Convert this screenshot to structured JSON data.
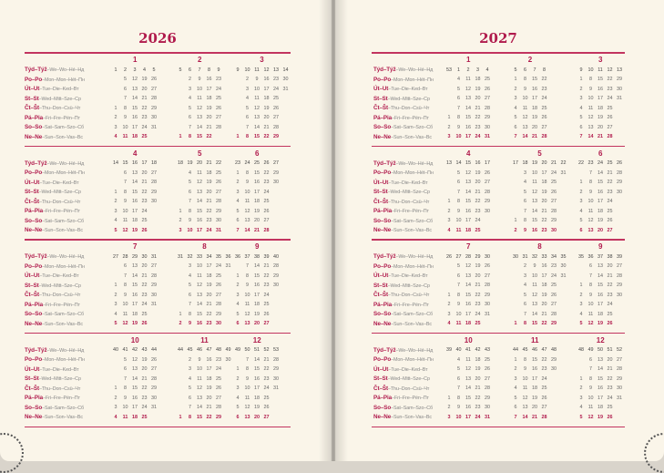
{
  "row_labels": [
    {
      "main": "Týd–Týž",
      "rest": "–We–Wo–Hé–Нд"
    },
    {
      "main": "Po–Po",
      "rest": "–Mon–Mon–Hét–Пн"
    },
    {
      "main": "Út–Ut",
      "rest": "–Tue–Die–Ked–Вт"
    },
    {
      "main": "St–St",
      "rest": "–Wed–Mitt–Sze–Ср"
    },
    {
      "main": "Čt–Št",
      "rest": "–Thu–Don–Csü–Чт"
    },
    {
      "main": "Pá–Pia",
      "rest": "–Fri–Fre–Pén–Пт"
    },
    {
      "main": "So–So",
      "rest": "–Sat–Sam–Szo–Сб"
    },
    {
      "main": "Ne–Ne",
      "rest": "–Sun–Son–Vas–Вс"
    }
  ],
  "colors": {
    "accent": "#b01a4c",
    "paper": "#faf5e9",
    "text": "#666666"
  },
  "years": [
    {
      "year": "2026",
      "months": [
        {
          "label": "1",
          "weeks": [
            1,
            2,
            3,
            4,
            5
          ],
          "start_weekday": 4,
          "days": 31
        },
        {
          "label": "2",
          "weeks": [
            5,
            6,
            7,
            8,
            9
          ],
          "start_weekday": 7,
          "days": 28
        },
        {
          "label": "3",
          "weeks": [
            9,
            10,
            11,
            12,
            13,
            14
          ],
          "start_weekday": 7,
          "days": 31
        },
        {
          "label": "4",
          "weeks": [
            14,
            15,
            16,
            17,
            18
          ],
          "start_weekday": 3,
          "days": 30
        },
        {
          "label": "5",
          "weeks": [
            18,
            19,
            20,
            21,
            22
          ],
          "start_weekday": 5,
          "days": 31
        },
        {
          "label": "6",
          "weeks": [
            23,
            24,
            25,
            26,
            27
          ],
          "start_weekday": 1,
          "days": 30
        },
        {
          "label": "7",
          "weeks": [
            27,
            28,
            29,
            30,
            31
          ],
          "start_weekday": 3,
          "days": 31
        },
        {
          "label": "8",
          "weeks": [
            31,
            32,
            33,
            34,
            35,
            36
          ],
          "start_weekday": 6,
          "days": 31
        },
        {
          "label": "9",
          "weeks": [
            36,
            37,
            38,
            39,
            40
          ],
          "start_weekday": 2,
          "days": 30
        },
        {
          "label": "10",
          "weeks": [
            40,
            41,
            42,
            43,
            44
          ],
          "start_weekday": 4,
          "days": 31
        },
        {
          "label": "11",
          "weeks": [
            44,
            45,
            46,
            47,
            48,
            49
          ],
          "start_weekday": 7,
          "days": 30
        },
        {
          "label": "12",
          "weeks": [
            49,
            50,
            51,
            52,
            53
          ],
          "start_weekday": 2,
          "days": 31
        }
      ]
    },
    {
      "year": "2027",
      "months": [
        {
          "label": "1",
          "weeks": [
            53,
            1,
            2,
            3,
            4
          ],
          "start_weekday": 5,
          "days": 31
        },
        {
          "label": "2",
          "weeks": [
            5,
            6,
            7,
            8
          ],
          "start_weekday": 1,
          "days": 28
        },
        {
          "label": "3",
          "weeks": [
            9,
            10,
            11,
            12,
            13
          ],
          "start_weekday": 1,
          "days": 31
        },
        {
          "label": "4",
          "weeks": [
            13,
            14,
            15,
            16,
            17
          ],
          "start_weekday": 4,
          "days": 30
        },
        {
          "label": "5",
          "weeks": [
            17,
            18,
            19,
            20,
            21,
            22
          ],
          "start_weekday": 6,
          "days": 31
        },
        {
          "label": "6",
          "weeks": [
            22,
            23,
            24,
            25,
            26
          ],
          "start_weekday": 2,
          "days": 30
        },
        {
          "label": "7",
          "weeks": [
            26,
            27,
            28,
            29,
            30
          ],
          "start_weekday": 4,
          "days": 31
        },
        {
          "label": "8",
          "weeks": [
            30,
            31,
            32,
            33,
            34,
            35
          ],
          "start_weekday": 7,
          "days": 31
        },
        {
          "label": "9",
          "weeks": [
            35,
            36,
            37,
            38,
            39
          ],
          "start_weekday": 3,
          "days": 30
        },
        {
          "label": "10",
          "weeks": [
            39,
            40,
            41,
            42,
            43
          ],
          "start_weekday": 5,
          "days": 31
        },
        {
          "label": "11",
          "weeks": [
            44,
            45,
            46,
            47,
            48
          ],
          "start_weekday": 1,
          "days": 30
        },
        {
          "label": "12",
          "weeks": [
            48,
            49,
            50,
            51,
            52
          ],
          "start_weekday": 3,
          "days": 31
        }
      ]
    }
  ]
}
